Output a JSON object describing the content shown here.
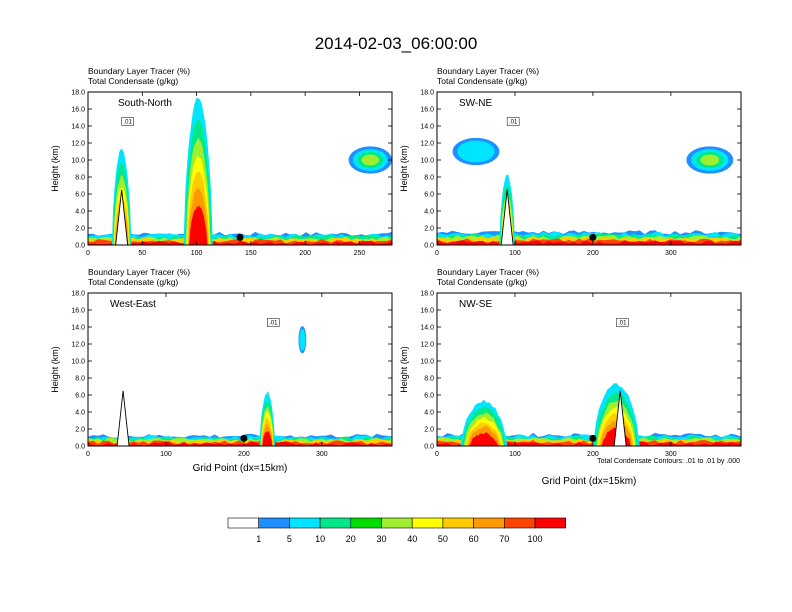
{
  "title": "2014-02-03_06:00:00",
  "header_line1": "Boundary Layer Tracer   (%)",
  "header_line2": "Total Condensate   (g/kg)",
  "contour_note": "Total Condensate Contours: .01 to .01 by .000",
  "contour_label": ".01",
  "colors": {
    "c_1": "#ffffff",
    "c_5": "#1e90ff",
    "c_10": "#00e5ff",
    "c_20": "#00e88a",
    "c_30": "#00dd00",
    "c_40": "#a0ee30",
    "c_50": "#ffff00",
    "c_60": "#ffcc00",
    "c_70": "#ff9900",
    "c_80": "#ff4400",
    "c_100": "#ff0000"
  },
  "colorbar": {
    "labels": [
      "1",
      "5",
      "10",
      "20",
      "30",
      "40",
      "50",
      "60",
      "70",
      "100"
    ]
  },
  "chart_data": [
    {
      "type": "heatmap",
      "label": "South-North",
      "ylabel": "Height (km)",
      "xlabel": "",
      "xlim": [
        0,
        280
      ],
      "ylim": [
        0,
        18
      ],
      "xticks": [
        0,
        50,
        100,
        150,
        200,
        250
      ],
      "yticks": [
        "0.0",
        "2.0",
        "4.0",
        "6.0",
        "8.0",
        "10.0",
        "12.0",
        "14.0",
        "16.0",
        "18.0"
      ],
      "terrain_peak_x": 31,
      "marker_x": 140,
      "marker_y": 0.9,
      "tracer_features": [
        {
          "x": [
            0,
            280
          ],
          "top_km": 1.3,
          "level": 100
        },
        {
          "x": [
            22,
            40
          ],
          "top_km": 11.0,
          "level": 20
        },
        {
          "x": [
            88,
            115
          ],
          "top_km": 17.0,
          "level": 60
        },
        {
          "x": [
            240,
            280
          ],
          "center_km": 10.0,
          "level": 30
        }
      ]
    },
    {
      "type": "heatmap",
      "label": "SW-NE",
      "ylabel": "Height (km)",
      "xlabel": "",
      "xlim": [
        0,
        390
      ],
      "ylim": [
        0,
        18
      ],
      "xticks": [
        0,
        100,
        200,
        300
      ],
      "yticks": [
        "0.0",
        "2.0",
        "4.0",
        "6.0",
        "8.0",
        "10.0",
        "12.0",
        "14.0",
        "16.0",
        "18.0"
      ],
      "terrain_peak_x": 90,
      "marker_x": 200,
      "marker_y": 0.9,
      "tracer_features": [
        {
          "x": [
            0,
            390
          ],
          "top_km": 1.5,
          "level": 100
        },
        {
          "x": [
            80,
            100
          ],
          "top_km": 8.0,
          "level": 50
        },
        {
          "x": [
            20,
            80
          ],
          "center_km": 11.0,
          "level": 10
        },
        {
          "x": [
            320,
            380
          ],
          "center_km": 10.0,
          "level": 20
        }
      ]
    },
    {
      "type": "heatmap",
      "label": "West-East",
      "ylabel": "Height (km)",
      "xlabel": "Grid Point (dx=15km)",
      "xlim": [
        0,
        390
      ],
      "ylim": [
        0,
        18
      ],
      "xticks": [
        0,
        100,
        200,
        300
      ],
      "yticks": [
        "0.0",
        "2.0",
        "4.0",
        "6.0",
        "8.0",
        "10.0",
        "12.0",
        "14.0",
        "16.0",
        "18.0"
      ],
      "terrain_peak_x": 45,
      "marker_x": 200,
      "marker_y": 0.9,
      "tracer_features": [
        {
          "x": [
            0,
            390
          ],
          "top_km": 1.2,
          "level": 100
        },
        {
          "x": [
            220,
            240
          ],
          "top_km": 6.0,
          "level": 50
        },
        {
          "x": [
            270,
            280
          ],
          "center_km": 12.5,
          "level": 5
        }
      ]
    },
    {
      "type": "heatmap",
      "label": "NW-SE",
      "ylabel": "Height (km)",
      "xlabel": "Grid Point (dx=15km)",
      "xlim": [
        0,
        390
      ],
      "ylim": [
        0,
        18
      ],
      "xticks": [
        0,
        100,
        200,
        300
      ],
      "yticks": [
        "0.0",
        "2.0",
        "4.0",
        "6.0",
        "8.0",
        "10.0",
        "12.0",
        "14.0",
        "16.0",
        "18.0"
      ],
      "terrain_peak_x": 235,
      "marker_x": 200,
      "marker_y": 0.9,
      "tracer_features": [
        {
          "x": [
            0,
            390
          ],
          "top_km": 1.3,
          "level": 100
        },
        {
          "x": [
            200,
            260
          ],
          "top_km": 7.0,
          "level": 60
        },
        {
          "x": [
            30,
            90
          ],
          "top_km": 5.0,
          "level": 30
        }
      ]
    }
  ]
}
